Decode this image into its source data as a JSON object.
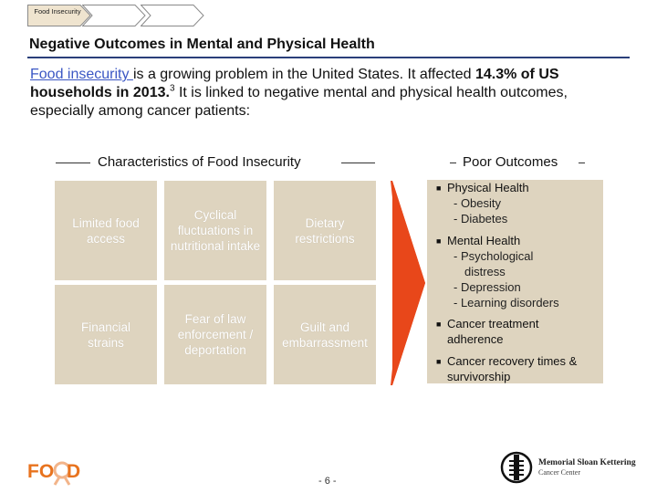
{
  "breadcrumb": {
    "items": [
      {
        "label": "Food Insecurity",
        "active": true
      },
      {
        "label": "",
        "active": false
      },
      {
        "label": "",
        "active": false
      }
    ]
  },
  "title": "Negative Outcomes in Mental and Physical Health",
  "intro": {
    "link_text": "Food insecurity ",
    "part1": "is a growing problem in the United States.  It affected ",
    "bold": "14.3% of US households in 2013.",
    "ref": "3",
    "part2": "  It is linked to negative mental and physical health outcomes, especially among cancer patients:"
  },
  "characteristics": {
    "heading": "Characteristics of Food Insecurity",
    "cells": [
      "Limited food access",
      "Cyclical fluctuations in nutritional intake",
      "Dietary restrictions",
      "Financial strains",
      "Fear of law enforcement / deportation",
      "Guilt and embarrassment"
    ]
  },
  "outcomes": {
    "heading": "Poor Outcomes",
    "bullets": [
      {
        "label": "Physical Health",
        "subs": [
          "- Obesity",
          "- Diabetes"
        ]
      },
      {
        "label": "Mental Health",
        "subs": [
          "- Psychological",
          "distress",
          "- Depression",
          "- Learning disorders"
        ]
      },
      {
        "label": "Cancer treatment",
        "label2": "adherence"
      },
      {
        "label": "Cancer recovery times &",
        "label2": "survivorship"
      }
    ]
  },
  "footer": {
    "page_number": "- 6 -",
    "logo_left": "FOOD",
    "logo_right_line1": "Memorial Sloan Kettering",
    "logo_right_line2": "Cancer Center"
  },
  "colors": {
    "title_rule": "#2a3f7a",
    "link": "#3b57c4",
    "tile": "#ded4bf",
    "arrow": "#e8471a",
    "logo_orange": "#e8731e"
  }
}
